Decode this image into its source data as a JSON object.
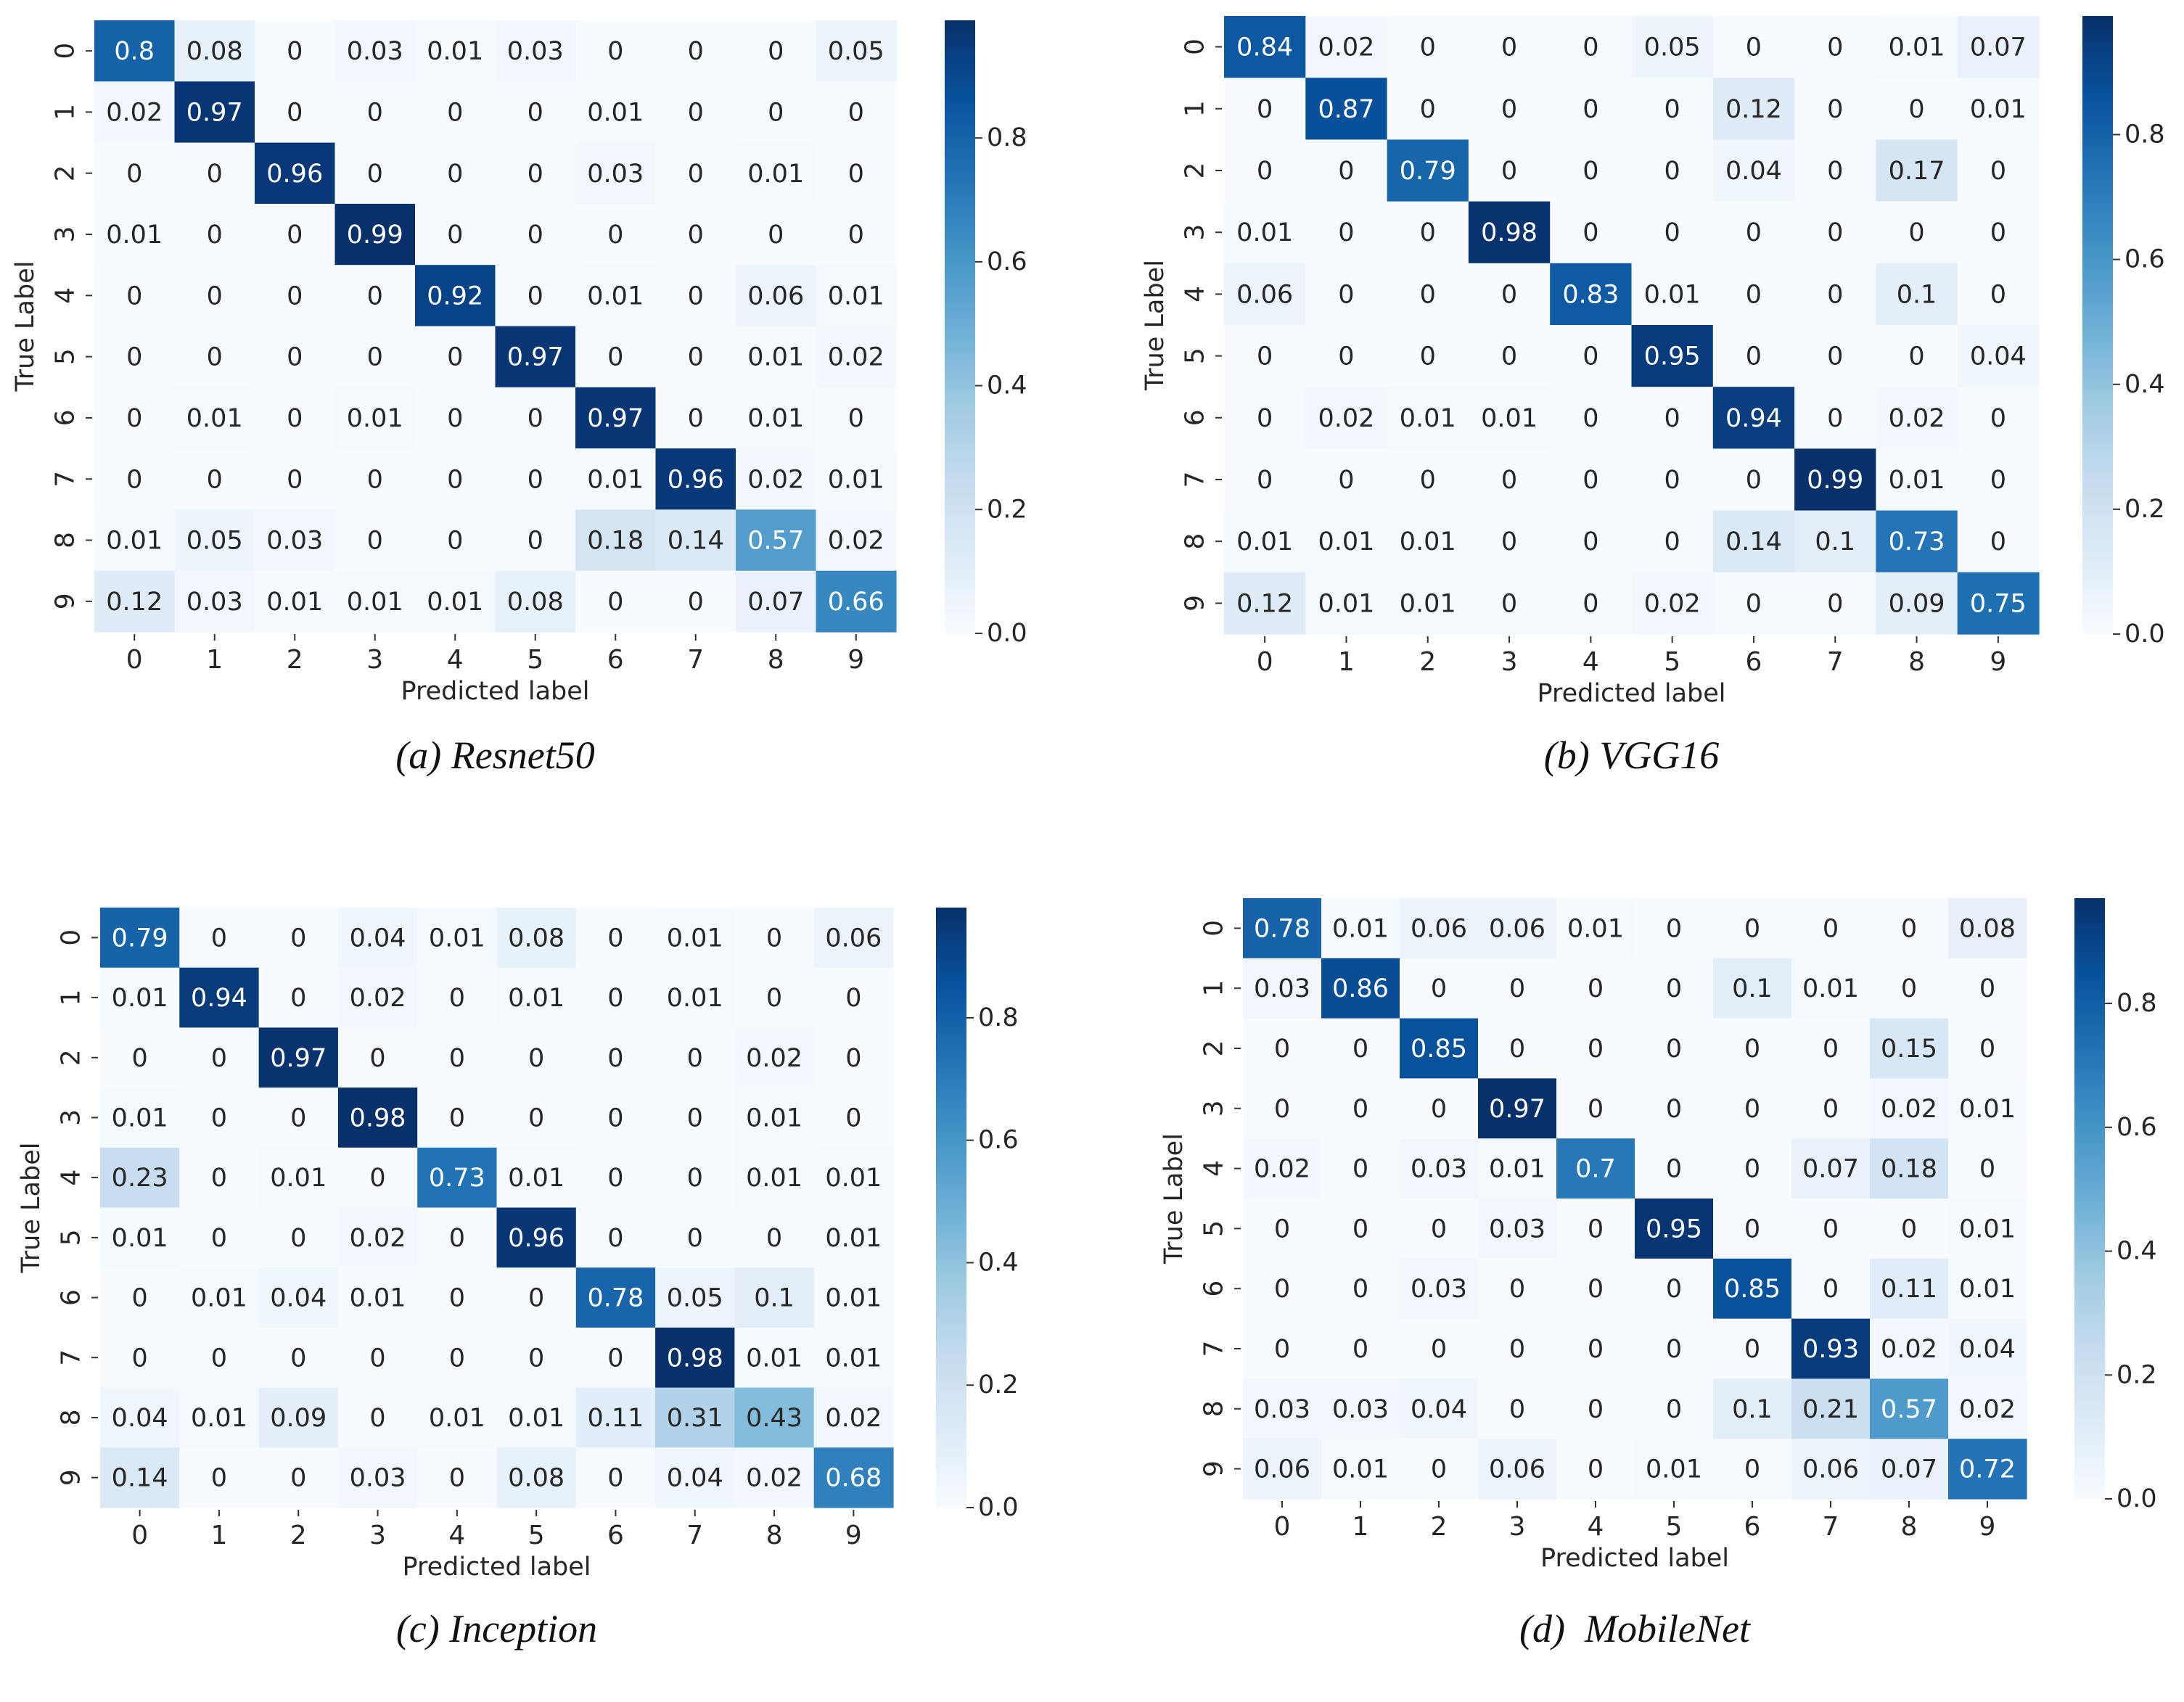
{
  "chart_data": [
    {
      "type": "heatmap",
      "title": "",
      "caption": "(a) Resnet50",
      "xlabel": "Predicted label",
      "ylabel": "True Label",
      "x_ticks": [
        "0",
        "1",
        "2",
        "3",
        "4",
        "5",
        "6",
        "7",
        "8",
        "9"
      ],
      "y_ticks": [
        "0",
        "1",
        "2",
        "3",
        "4",
        "5",
        "6",
        "7",
        "8",
        "9"
      ],
      "colormap": "Blues",
      "colorbar_ticks": [
        "0.0",
        "0.2",
        "0.4",
        "0.6",
        "0.8"
      ],
      "value_range": [
        0,
        0.99
      ],
      "matrix": [
        [
          "0.8",
          "0.08",
          "0",
          "0.03",
          "0.01",
          "0.03",
          "0",
          "0",
          "0",
          "0.05"
        ],
        [
          "0.02",
          "0.97",
          "0",
          "0",
          "0",
          "0",
          "0.01",
          "0",
          "0",
          "0"
        ],
        [
          "0",
          "0",
          "0.96",
          "0",
          "0",
          "0",
          "0.03",
          "0",
          "0.01",
          "0"
        ],
        [
          "0.01",
          "0",
          "0",
          "0.99",
          "0",
          "0",
          "0",
          "0",
          "0",
          "0"
        ],
        [
          "0",
          "0",
          "0",
          "0",
          "0.92",
          "0",
          "0.01",
          "0",
          "0.06",
          "0.01"
        ],
        [
          "0",
          "0",
          "0",
          "0",
          "0",
          "0.97",
          "0",
          "0",
          "0.01",
          "0.02"
        ],
        [
          "0",
          "0.01",
          "0",
          "0.01",
          "0",
          "0",
          "0.97",
          "0",
          "0.01",
          "0"
        ],
        [
          "0",
          "0",
          "0",
          "0",
          "0",
          "0",
          "0.01",
          "0.96",
          "0.02",
          "0.01"
        ],
        [
          "0.01",
          "0.05",
          "0.03",
          "0",
          "0",
          "0",
          "0.18",
          "0.14",
          "0.57",
          "0.02"
        ],
        [
          "0.12",
          "0.03",
          "0.01",
          "0.01",
          "0.01",
          "0.08",
          "0",
          "0",
          "0.07",
          "0.66"
        ]
      ]
    },
    {
      "type": "heatmap",
      "title": "",
      "caption": "(b) VGG16",
      "xlabel": "Predicted label",
      "ylabel": "True Label",
      "x_ticks": [
        "0",
        "1",
        "2",
        "3",
        "4",
        "5",
        "6",
        "7",
        "8",
        "9"
      ],
      "y_ticks": [
        "0",
        "1",
        "2",
        "3",
        "4",
        "5",
        "6",
        "7",
        "8",
        "9"
      ],
      "colormap": "Blues",
      "colorbar_ticks": [
        "0.0",
        "0.2",
        "0.4",
        "0.6",
        "0.8"
      ],
      "value_range": [
        0,
        0.99
      ],
      "matrix": [
        [
          "0.84",
          "0.02",
          "0",
          "0",
          "0",
          "0.05",
          "0",
          "0",
          "0.01",
          "0.07"
        ],
        [
          "0",
          "0.87",
          "0",
          "0",
          "0",
          "0",
          "0.12",
          "0",
          "0",
          "0.01"
        ],
        [
          "0",
          "0",
          "0.79",
          "0",
          "0",
          "0",
          "0.04",
          "0",
          "0.17",
          "0"
        ],
        [
          "0.01",
          "0",
          "0",
          "0.98",
          "0",
          "0",
          "0",
          "0",
          "0",
          "0"
        ],
        [
          "0.06",
          "0",
          "0",
          "0",
          "0.83",
          "0.01",
          "0",
          "0",
          "0.1",
          "0"
        ],
        [
          "0",
          "0",
          "0",
          "0",
          "0",
          "0.95",
          "0",
          "0",
          "0",
          "0.04"
        ],
        [
          "0",
          "0.02",
          "0.01",
          "0.01",
          "0",
          "0",
          "0.94",
          "0",
          "0.02",
          "0"
        ],
        [
          "0",
          "0",
          "0",
          "0",
          "0",
          "0",
          "0",
          "0.99",
          "0.01",
          "0"
        ],
        [
          "0.01",
          "0.01",
          "0.01",
          "0",
          "0",
          "0",
          "0.14",
          "0.1",
          "0.73",
          "0"
        ],
        [
          "0.12",
          "0.01",
          "0.01",
          "0",
          "0",
          "0.02",
          "0",
          "0",
          "0.09",
          "0.75"
        ]
      ]
    },
    {
      "type": "heatmap",
      "title": "",
      "caption": "(c) Inception",
      "xlabel": "Predicted label",
      "ylabel": "True Label",
      "x_ticks": [
        "0",
        "1",
        "2",
        "3",
        "4",
        "5",
        "6",
        "7",
        "8",
        "9"
      ],
      "y_ticks": [
        "0",
        "1",
        "2",
        "3",
        "4",
        "5",
        "6",
        "7",
        "8",
        "9"
      ],
      "colormap": "Blues",
      "colorbar_ticks": [
        "0.0",
        "0.2",
        "0.4",
        "0.6",
        "0.8"
      ],
      "value_range": [
        0,
        0.98
      ],
      "matrix": [
        [
          "0.79",
          "0",
          "0",
          "0.04",
          "0.01",
          "0.08",
          "0",
          "0.01",
          "0",
          "0.06"
        ],
        [
          "0.01",
          "0.94",
          "0",
          "0.02",
          "0",
          "0.01",
          "0",
          "0.01",
          "0",
          "0"
        ],
        [
          "0",
          "0",
          "0.97",
          "0",
          "0",
          "0",
          "0",
          "0",
          "0.02",
          "0"
        ],
        [
          "0.01",
          "0",
          "0",
          "0.98",
          "0",
          "0",
          "0",
          "0",
          "0.01",
          "0"
        ],
        [
          "0.23",
          "0",
          "0.01",
          "0",
          "0.73",
          "0.01",
          "0",
          "0",
          "0.01",
          "0.01"
        ],
        [
          "0.01",
          "0",
          "0",
          "0.02",
          "0",
          "0.96",
          "0",
          "0",
          "0",
          "0.01"
        ],
        [
          "0",
          "0.01",
          "0.04",
          "0.01",
          "0",
          "0",
          "0.78",
          "0.05",
          "0.1",
          "0.01"
        ],
        [
          "0",
          "0",
          "0",
          "0",
          "0",
          "0",
          "0",
          "0.98",
          "0.01",
          "0.01"
        ],
        [
          "0.04",
          "0.01",
          "0.09",
          "0",
          "0.01",
          "0.01",
          "0.11",
          "0.31",
          "0.43",
          "0.02"
        ],
        [
          "0.14",
          "0",
          "0",
          "0.03",
          "0",
          "0.08",
          "0",
          "0.04",
          "0.02",
          "0.68"
        ]
      ]
    },
    {
      "type": "heatmap",
      "title": "",
      "caption": "(d)  MobileNet",
      "xlabel": "Predicted label",
      "ylabel": "True Label",
      "x_ticks": [
        "0",
        "1",
        "2",
        "3",
        "4",
        "5",
        "6",
        "7",
        "8",
        "9"
      ],
      "y_ticks": [
        "0",
        "1",
        "2",
        "3",
        "4",
        "5",
        "6",
        "7",
        "8",
        "9"
      ],
      "colormap": "Blues",
      "colorbar_ticks": [
        "0.0",
        "0.2",
        "0.4",
        "0.6",
        "0.8"
      ],
      "value_range": [
        0,
        0.97
      ],
      "matrix": [
        [
          "0.78",
          "0.01",
          "0.06",
          "0.06",
          "0.01",
          "0",
          "0",
          "0",
          "0",
          "0.08"
        ],
        [
          "0.03",
          "0.86",
          "0",
          "0",
          "0",
          "0",
          "0.1",
          "0.01",
          "0",
          "0"
        ],
        [
          "0",
          "0",
          "0.85",
          "0",
          "0",
          "0",
          "0",
          "0",
          "0.15",
          "0"
        ],
        [
          "0",
          "0",
          "0",
          "0.97",
          "0",
          "0",
          "0",
          "0",
          "0.02",
          "0.01"
        ],
        [
          "0.02",
          "0",
          "0.03",
          "0.01",
          "0.7",
          "0",
          "0",
          "0.07",
          "0.18",
          "0"
        ],
        [
          "0",
          "0",
          "0",
          "0.03",
          "0",
          "0.95",
          "0",
          "0",
          "0",
          "0.01"
        ],
        [
          "0",
          "0",
          "0.03",
          "0",
          "0",
          "0",
          "0.85",
          "0",
          "0.11",
          "0.01"
        ],
        [
          "0",
          "0",
          "0",
          "0",
          "0",
          "0",
          "0",
          "0.93",
          "0.02",
          "0.04"
        ],
        [
          "0.03",
          "0.03",
          "0.04",
          "0",
          "0",
          "0",
          "0.1",
          "0.21",
          "0.57",
          "0.02"
        ],
        [
          "0.06",
          "0.01",
          "0",
          "0.06",
          "0",
          "0.01",
          "0",
          "0.06",
          "0.07",
          "0.72"
        ]
      ]
    }
  ]
}
